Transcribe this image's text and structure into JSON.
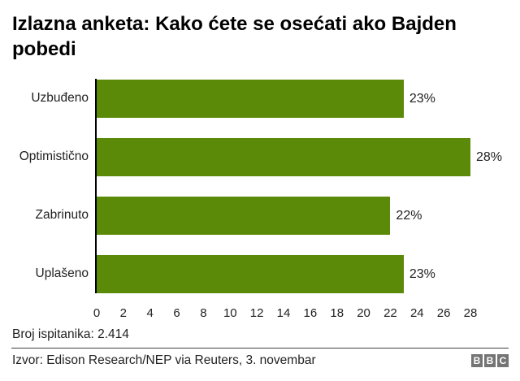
{
  "title_lines": [
    "Izlazna anketa: Kako ćete se osećati ako Bajden",
    "pobedi"
  ],
  "title_full": "Izlazna anketa: Kako ćete se osećati ako Bajden pobedi",
  "chart_data": {
    "type": "bar",
    "orientation": "horizontal",
    "title": "Izlazna anketa: Kako ćete se osećati ako Bajden pobedi",
    "categories": [
      "Uzbuđeno",
      "Optimistično",
      "Zabrinuto",
      "Uplašeno"
    ],
    "values": [
      23,
      28,
      22,
      23
    ],
    "value_labels": [
      "23%",
      "28%",
      "22%",
      "23%"
    ],
    "xlabel": "",
    "ylabel": "",
    "xlim": [
      0,
      28
    ],
    "x_ticks": [
      0,
      2,
      4,
      6,
      8,
      10,
      12,
      14,
      16,
      18,
      20,
      22,
      24,
      26,
      28
    ],
    "grid": false,
    "legend": null,
    "bar_color": "#5a8a08",
    "axis_color": "#000000",
    "label_color": "#222222"
  },
  "footer": {
    "respondents": "Broj ispitanika: 2.414",
    "source": "Izvor: Edison Research/NEP via Reuters, 3. novembar"
  },
  "logo": {
    "letters": [
      "B",
      "B",
      "C"
    ],
    "box_color": "#757575",
    "text_color": "#ffffff"
  }
}
